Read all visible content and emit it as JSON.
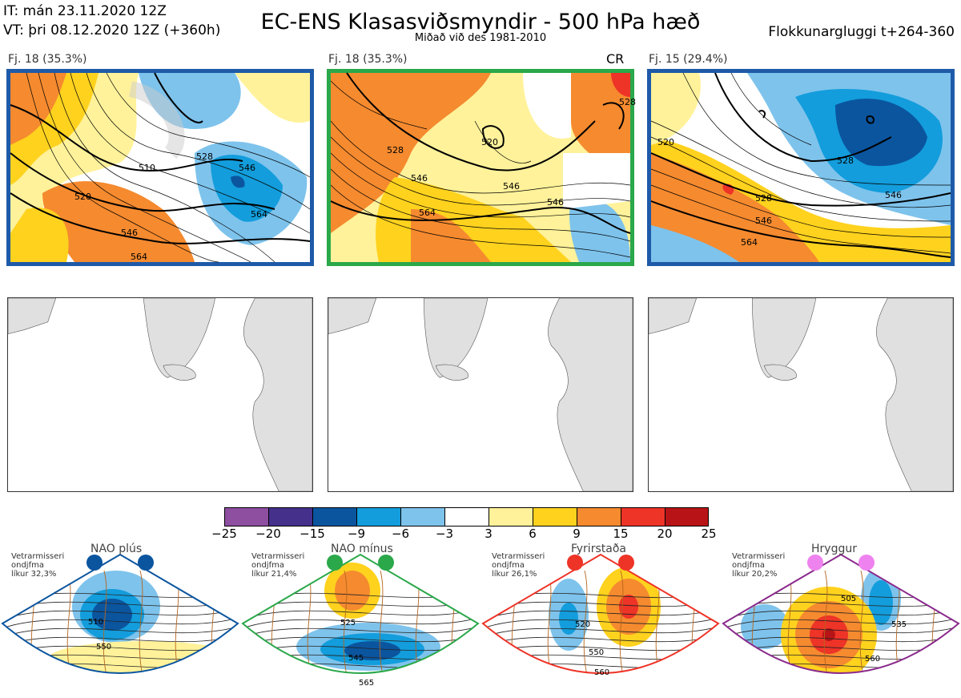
{
  "header": {
    "it": "IT: mán 23.11.2020 12Z",
    "vt": "VT: þri 08.12.2020 12Z  (+360h)",
    "title": "EC-ENS Klasasviðsmyndir - 500 hPa hæð",
    "subtitle": "Miðað við des 1981-2010",
    "window": "Flokkunargluggi t+264-360"
  },
  "panels": [
    {
      "label": "Fj. 18 (35.3%)",
      "border": "#1e5aa8",
      "tag": "",
      "contours": [
        "510",
        "528",
        "546",
        "564",
        "520",
        "546",
        "564"
      ]
    },
    {
      "label": "Fj. 18 (35.3%)",
      "border": "#2aa84a",
      "tag": "CR",
      "contours": [
        "528",
        "546",
        "564",
        "520",
        "528",
        "546",
        "546"
      ]
    },
    {
      "label": "Fj. 15 (29.4%)",
      "border": "#1e5aa8",
      "tag": "",
      "contours": [
        "528",
        "528",
        "546",
        "564",
        "520",
        "546"
      ]
    }
  ],
  "colorbar": {
    "colors": [
      "#8e4fa0",
      "#45308c",
      "#0b559f",
      "#139ddc",
      "#7ec3ec",
      "#ffffff",
      "#fff29a",
      "#ffd21e",
      "#f58a2f",
      "#ee3327",
      "#b81417"
    ],
    "ticks": [
      "−25",
      "−20",
      "−15",
      "−9",
      "−6",
      "−3",
      "3",
      "6",
      "9",
      "15",
      "20",
      "25"
    ]
  },
  "regimes": [
    {
      "name": "NAO plús",
      "note": [
        "Vetrarmisseri",
        "ondjfma",
        "líkur 32,3%"
      ],
      "color": "#0b559f",
      "dot_color": "#0b559f",
      "labels": [
        "510",
        "550"
      ]
    },
    {
      "name": "NAO mínus",
      "note": [
        "Vetrarmisseri",
        "ondjfma",
        "líkur 21,4%"
      ],
      "color": "#2aa84a",
      "dot_color": "#2aa84a",
      "labels": [
        "525",
        "545",
        "565"
      ]
    },
    {
      "name": "Fyrirstaða",
      "note": [
        "Vetrarmisseri",
        "ondjfma",
        "líkur 26,1%"
      ],
      "color": "#ee3327",
      "dot_color": "#ee3327",
      "labels": [
        "520",
        "550",
        "560"
      ]
    },
    {
      "name": "Hryggur",
      "note": [
        "Vetrarmisseri",
        "ondjfma",
        "líkur 20,2%"
      ],
      "color": "#8a2a8c",
      "dot_color": "#ee82ee",
      "labels": [
        "505",
        "535",
        "560"
      ]
    }
  ]
}
